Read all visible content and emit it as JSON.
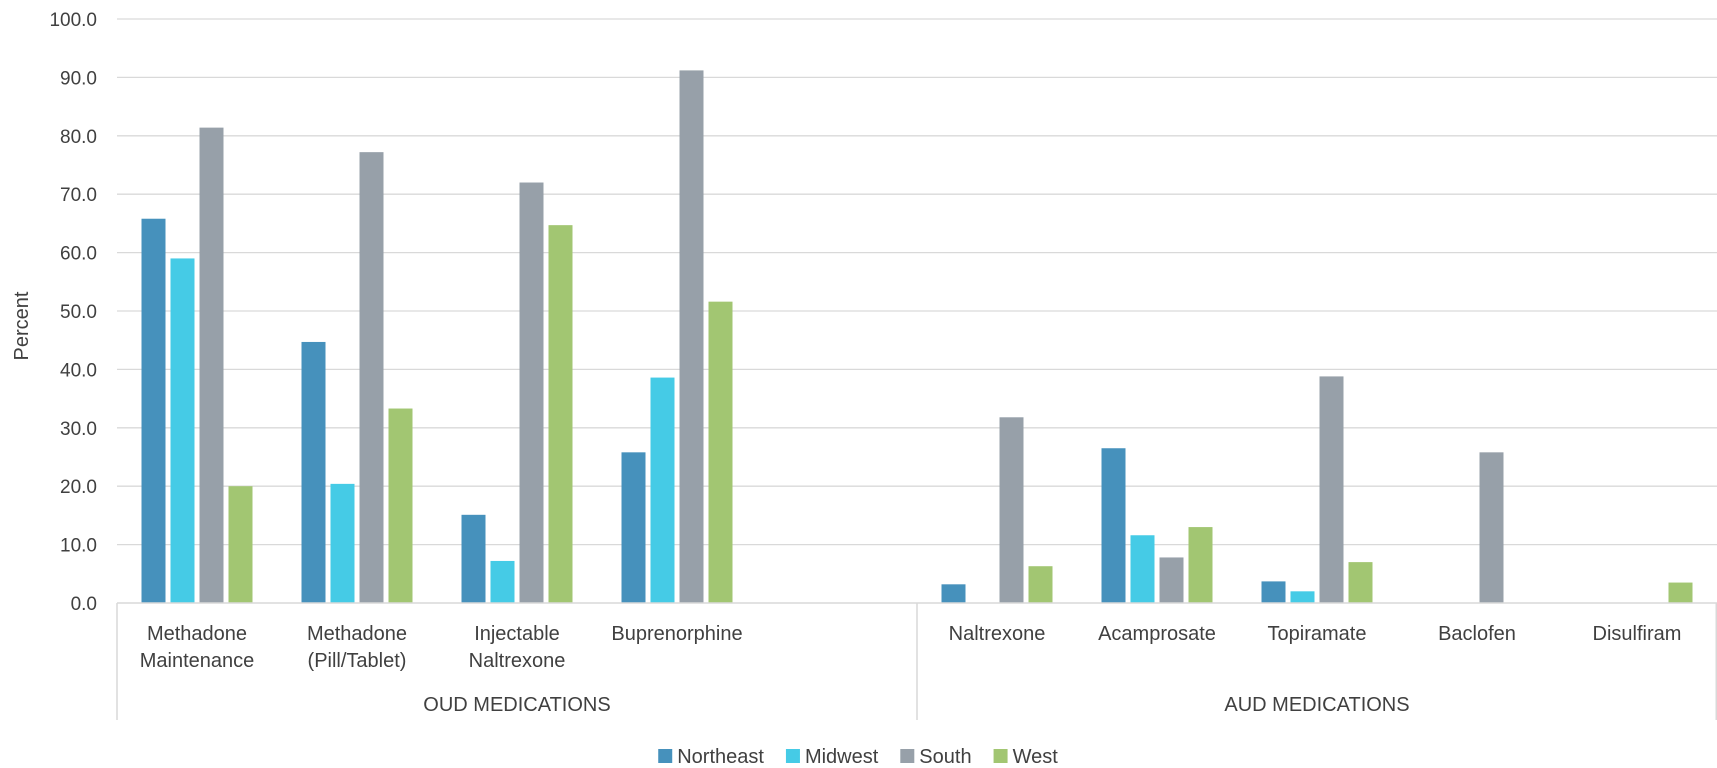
{
  "chart_data": {
    "type": "bar",
    "ylabel": "Percent",
    "ylim": [
      0,
      100
    ],
    "y_ticks": [
      "0.0",
      "10.0",
      "20.0",
      "30.0",
      "40.0",
      "50.0",
      "60.0",
      "70.0",
      "80.0",
      "90.0",
      "100.0"
    ],
    "grid": true,
    "legend_position": "bottom",
    "groups": [
      {
        "label": "OUD MEDICATIONS",
        "categories": [
          {
            "label": [
              "Methadone",
              "Maintenance"
            ],
            "values": [
              65.8,
              59.0,
              81.4,
              20.0
            ]
          },
          {
            "label": [
              "Methadone",
              "(Pill/Tablet)"
            ],
            "values": [
              44.7,
              20.4,
              77.2,
              33.3
            ]
          },
          {
            "label": [
              "Injectable",
              "Naltrexone"
            ],
            "values": [
              15.1,
              7.2,
              72.0,
              64.7
            ]
          },
          {
            "label": [
              "Buprenorphine"
            ],
            "values": [
              25.8,
              38.6,
              91.2,
              51.6
            ]
          },
          {
            "label": [],
            "values": [
              null,
              null,
              null,
              null
            ]
          }
        ]
      },
      {
        "label": "AUD MEDICATIONS",
        "categories": [
          {
            "label": [
              "Naltrexone"
            ],
            "values": [
              3.2,
              0,
              31.8,
              6.3
            ]
          },
          {
            "label": [
              "Acamprosate"
            ],
            "values": [
              26.5,
              11.6,
              7.8,
              13.0
            ]
          },
          {
            "label": [
              "Topiramate"
            ],
            "values": [
              3.7,
              2.0,
              38.8,
              7.0
            ]
          },
          {
            "label": [
              "Baclofen"
            ],
            "values": [
              0,
              0,
              25.8,
              0
            ]
          },
          {
            "label": [
              "Disulfiram"
            ],
            "values": [
              0,
              0,
              0,
              3.5
            ]
          }
        ]
      }
    ],
    "series": [
      {
        "name": "Northeast",
        "color": "#4691bc"
      },
      {
        "name": "Midwest",
        "color": "#45cbe6"
      },
      {
        "name": "South",
        "color": "#97a0a9"
      },
      {
        "name": "West",
        "color": "#a2c672"
      }
    ]
  }
}
